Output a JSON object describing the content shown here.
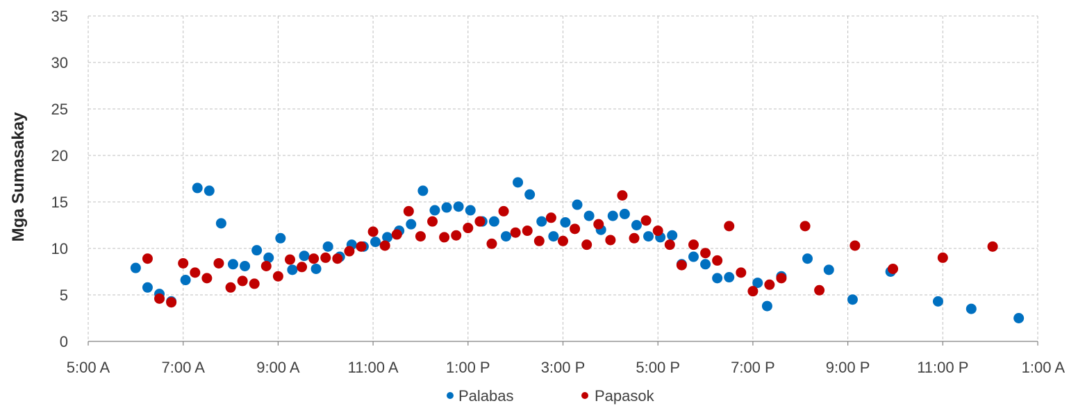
{
  "chart_data": {
    "type": "scatter",
    "ylabel": "Mga Sumasakay",
    "xlabel": "",
    "ylim": [
      0,
      35
    ],
    "yticks": [
      0,
      5,
      10,
      15,
      20,
      25,
      30,
      35
    ],
    "xlim_hours": [
      5,
      25
    ],
    "xticks": [
      {
        "hour": 5,
        "label": "5:00 A"
      },
      {
        "hour": 7,
        "label": "7:00 A"
      },
      {
        "hour": 9,
        "label": "9:00 A"
      },
      {
        "hour": 11,
        "label": "11:00 A"
      },
      {
        "hour": 13,
        "label": "1:00 P"
      },
      {
        "hour": 15,
        "label": "3:00 P"
      },
      {
        "hour": 17,
        "label": "5:00 P"
      },
      {
        "hour": 19,
        "label": "7:00 P"
      },
      {
        "hour": 21,
        "label": "9:00 P"
      },
      {
        "hour": 23,
        "label": "11:00 P"
      },
      {
        "hour": 25,
        "label": "1:00 A"
      }
    ],
    "grid": true,
    "legend_position": "bottom",
    "series": [
      {
        "name": "Palabas",
        "color": "#0070c0",
        "points": [
          [
            6.0,
            7.9
          ],
          [
            6.25,
            5.8
          ],
          [
            6.5,
            5.1
          ],
          [
            6.75,
            4.3
          ],
          [
            7.05,
            6.6
          ],
          [
            7.3,
            16.5
          ],
          [
            7.55,
            16.2
          ],
          [
            7.8,
            12.7
          ],
          [
            8.05,
            8.3
          ],
          [
            8.3,
            8.1
          ],
          [
            8.55,
            9.8
          ],
          [
            8.8,
            9.0
          ],
          [
            9.05,
            11.1
          ],
          [
            9.3,
            7.7
          ],
          [
            9.55,
            9.2
          ],
          [
            9.8,
            7.8
          ],
          [
            10.05,
            10.2
          ],
          [
            10.3,
            9.1
          ],
          [
            10.55,
            10.4
          ],
          [
            10.8,
            10.2
          ],
          [
            11.05,
            10.7
          ],
          [
            11.3,
            11.2
          ],
          [
            11.55,
            11.9
          ],
          [
            11.8,
            12.6
          ],
          [
            12.05,
            16.2
          ],
          [
            12.3,
            14.1
          ],
          [
            12.55,
            14.4
          ],
          [
            12.8,
            14.5
          ],
          [
            13.05,
            14.1
          ],
          [
            13.3,
            12.9
          ],
          [
            13.55,
            12.9
          ],
          [
            13.8,
            11.3
          ],
          [
            14.05,
            17.1
          ],
          [
            14.3,
            15.8
          ],
          [
            14.55,
            12.9
          ],
          [
            14.8,
            11.3
          ],
          [
            15.05,
            12.8
          ],
          [
            15.3,
            14.7
          ],
          [
            15.55,
            13.5
          ],
          [
            15.8,
            12.0
          ],
          [
            16.05,
            13.5
          ],
          [
            16.3,
            13.7
          ],
          [
            16.55,
            12.5
          ],
          [
            16.8,
            11.3
          ],
          [
            17.05,
            11.2
          ],
          [
            17.3,
            11.4
          ],
          [
            17.5,
            8.3
          ],
          [
            17.75,
            9.1
          ],
          [
            18.0,
            8.3
          ],
          [
            18.25,
            6.8
          ],
          [
            18.5,
            6.9
          ],
          [
            19.1,
            6.3
          ],
          [
            19.3,
            3.8
          ],
          [
            19.6,
            7.0
          ],
          [
            20.15,
            8.9
          ],
          [
            20.6,
            7.7
          ],
          [
            21.1,
            4.5
          ],
          [
            21.9,
            7.5
          ],
          [
            22.9,
            4.3
          ],
          [
            23.6,
            3.5
          ],
          [
            24.6,
            2.5
          ]
        ]
      },
      {
        "name": "Papasok",
        "color": "#c00000",
        "points": [
          [
            6.25,
            8.9
          ],
          [
            6.5,
            4.6
          ],
          [
            6.75,
            4.2
          ],
          [
            7.0,
            8.4
          ],
          [
            7.25,
            7.4
          ],
          [
            7.5,
            6.8
          ],
          [
            7.75,
            8.4
          ],
          [
            8.0,
            5.8
          ],
          [
            8.25,
            6.5
          ],
          [
            8.5,
            6.2
          ],
          [
            8.75,
            8.1
          ],
          [
            9.0,
            7.0
          ],
          [
            9.25,
            8.8
          ],
          [
            9.5,
            8.0
          ],
          [
            9.75,
            8.9
          ],
          [
            10.0,
            9.0
          ],
          [
            10.25,
            8.9
          ],
          [
            10.5,
            9.7
          ],
          [
            10.75,
            10.2
          ],
          [
            11.0,
            11.8
          ],
          [
            11.25,
            10.3
          ],
          [
            11.5,
            11.5
          ],
          [
            11.75,
            14.0
          ],
          [
            12.0,
            11.3
          ],
          [
            12.25,
            12.9
          ],
          [
            12.5,
            11.2
          ],
          [
            12.75,
            11.4
          ],
          [
            13.0,
            12.2
          ],
          [
            13.25,
            12.9
          ],
          [
            13.5,
            10.5
          ],
          [
            13.75,
            14.0
          ],
          [
            14.0,
            11.7
          ],
          [
            14.25,
            11.9
          ],
          [
            14.5,
            10.8
          ],
          [
            14.75,
            13.3
          ],
          [
            15.0,
            10.8
          ],
          [
            15.25,
            12.1
          ],
          [
            15.5,
            10.4
          ],
          [
            15.75,
            12.6
          ],
          [
            16.0,
            10.9
          ],
          [
            16.25,
            15.7
          ],
          [
            16.5,
            11.1
          ],
          [
            16.75,
            13.0
          ],
          [
            17.0,
            11.9
          ],
          [
            17.25,
            10.4
          ],
          [
            17.5,
            8.2
          ],
          [
            17.75,
            10.4
          ],
          [
            18.0,
            9.5
          ],
          [
            18.25,
            8.7
          ],
          [
            18.5,
            12.4
          ],
          [
            18.75,
            7.4
          ],
          [
            19.0,
            5.4
          ],
          [
            19.35,
            6.1
          ],
          [
            19.6,
            6.8
          ],
          [
            20.1,
            12.4
          ],
          [
            20.4,
            5.5
          ],
          [
            21.15,
            10.3
          ],
          [
            21.95,
            7.8
          ],
          [
            23.0,
            9.0
          ],
          [
            24.05,
            10.2
          ]
        ]
      }
    ]
  }
}
